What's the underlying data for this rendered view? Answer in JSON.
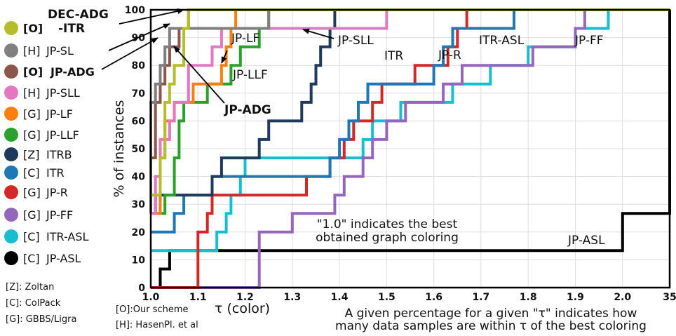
{
  "chart_data": {
    "type": "line",
    "ylabel": "% of instances",
    "xlabel": "τ (color)",
    "x_ticks": [
      "1.0",
      "1.1",
      "1.2",
      "1.3",
      "1.4",
      "1.5",
      "1.6",
      "1.7",
      "1.8",
      "1.9",
      "2.0",
      "35"
    ],
    "y_ticks": [
      "0",
      "10",
      "20",
      "30",
      "40",
      "50",
      "60",
      "70",
      "80",
      "90",
      "100"
    ],
    "ylim": [
      0,
      100
    ],
    "grid": true,
    "legend_position": "left",
    "legend": [
      {
        "prefix": "[O]",
        "name": "DEC-ADG",
        "name2": "-ITR",
        "color": "#b5bd2a",
        "bold": true
      },
      {
        "prefix": "[H]",
        "name": "JP-SL",
        "color": "#7f7f7f",
        "bold": false
      },
      {
        "prefix": "[O]",
        "name": "JP-ADG",
        "color": "#8c564b",
        "bold": true
      },
      {
        "prefix": "[H]",
        "name": "JP-SLL",
        "color": "#e377c2",
        "bold": false
      },
      {
        "prefix": "[G]",
        "name": "JP-LF",
        "color": "#ff7f0e",
        "bold": false
      },
      {
        "prefix": "[G]",
        "name": "JP-LLF",
        "color": "#2ca02c",
        "bold": false
      },
      {
        "prefix": "[Z]",
        "name": "ITRB",
        "color": "#1f3a5a",
        "bold": false
      },
      {
        "prefix": "[C]",
        "name": "ITR",
        "color": "#1f77b4",
        "bold": false
      },
      {
        "prefix": "[G]",
        "name": "JP-R",
        "color": "#d62728",
        "bold": false
      },
      {
        "prefix": "[G]",
        "name": "JP-FF",
        "color": "#9467bd",
        "bold": false
      },
      {
        "prefix": "[C]",
        "name": "ITR-ASL",
        "color": "#17becf",
        "bold": false
      },
      {
        "prefix": "[C]",
        "name": "JP-ASL",
        "color": "#000000",
        "bold": false
      }
    ],
    "source_notes": [
      "[Z]: Zoltan",
      "[C]: ColPack",
      "[G]: GBBS/Ligra"
    ],
    "scheme_notes": [
      "[O]:Our scheme",
      "[H]: HasenPl. et al"
    ],
    "annotations": {
      "best_note": [
        "\"1.0\" indicates the best",
        "obtained graph coloring"
      ],
      "percentage_note": [
        "A given percentage for a given \"τ\" indicates how",
        "many data samples are within τ of the best coloring"
      ],
      "dec_adg": [
        "DEC-ADG",
        "-ITR"
      ],
      "jp_lf": "JP-LF",
      "jp_sll": "JP-SLL",
      "jp_llf": "JP-LLF",
      "jp_adg": "JP-ADG",
      "itr": "ITR",
      "jp_r": "JP-R",
      "itr_asl": "ITR-ASL",
      "jp_ff": "JP-FF",
      "jp_asl": "JP-ASL"
    },
    "series": [
      {
        "name": "JP-ASL",
        "color": "#000000",
        "points": [
          [
            1.0,
            0
          ],
          [
            1.02,
            0
          ],
          [
            1.02,
            6.7
          ],
          [
            1.04,
            6.7
          ],
          [
            1.04,
            13.3
          ],
          [
            2.03,
            13.3
          ],
          [
            2.03,
            20
          ],
          [
            2.05,
            20
          ],
          [
            2.05,
            26.7
          ],
          [
            35,
            26.7
          ],
          [
            35,
            100
          ]
        ]
      },
      {
        "name": "ITR-ASL",
        "color": "#17becf",
        "points": [
          [
            1.0,
            13.3
          ],
          [
            1.14,
            13.3
          ],
          [
            1.14,
            20
          ],
          [
            1.16,
            20
          ],
          [
            1.16,
            26.7
          ],
          [
            1.17,
            26.7
          ],
          [
            1.17,
            33.3
          ],
          [
            1.19,
            33.3
          ],
          [
            1.19,
            40
          ],
          [
            1.2,
            40
          ],
          [
            1.2,
            46.7
          ],
          [
            1.45,
            46.7
          ],
          [
            1.45,
            53.3
          ],
          [
            1.47,
            53.3
          ],
          [
            1.47,
            60
          ],
          [
            1.53,
            60
          ],
          [
            1.53,
            66.7
          ],
          [
            1.64,
            66.7
          ],
          [
            1.64,
            73.3
          ],
          [
            1.72,
            73.3
          ],
          [
            1.72,
            80
          ],
          [
            1.8,
            80
          ],
          [
            1.8,
            86.7
          ],
          [
            1.9,
            86.7
          ],
          [
            1.9,
            93.3
          ],
          [
            1.97,
            93.3
          ],
          [
            1.97,
            100
          ],
          [
            35,
            100
          ]
        ]
      },
      {
        "name": "JP-FF",
        "color": "#9467bd",
        "points": [
          [
            1.0,
            0
          ],
          [
            1.23,
            0
          ],
          [
            1.23,
            20
          ],
          [
            1.3,
            20
          ],
          [
            1.3,
            26.7
          ],
          [
            1.39,
            26.7
          ],
          [
            1.39,
            33.3
          ],
          [
            1.41,
            33.3
          ],
          [
            1.41,
            40
          ],
          [
            1.45,
            40
          ],
          [
            1.45,
            46.7
          ],
          [
            1.47,
            46.7
          ],
          [
            1.47,
            53.3
          ],
          [
            1.5,
            53.3
          ],
          [
            1.5,
            60
          ],
          [
            1.54,
            60
          ],
          [
            1.54,
            66.7
          ],
          [
            1.62,
            66.7
          ],
          [
            1.62,
            73.3
          ],
          [
            1.66,
            73.3
          ],
          [
            1.66,
            80
          ],
          [
            1.81,
            80
          ],
          [
            1.81,
            86.7
          ],
          [
            1.9,
            86.7
          ],
          [
            1.9,
            93.3
          ],
          [
            1.92,
            93.3
          ],
          [
            1.92,
            100
          ],
          [
            35,
            100
          ]
        ]
      },
      {
        "name": "JP-R",
        "color": "#d62728",
        "points": [
          [
            1.0,
            0
          ],
          [
            1.1,
            0
          ],
          [
            1.1,
            20
          ],
          [
            1.12,
            20
          ],
          [
            1.12,
            26.7
          ],
          [
            1.13,
            26.7
          ],
          [
            1.13,
            33.3
          ],
          [
            1.33,
            33.3
          ],
          [
            1.33,
            40
          ],
          [
            1.38,
            40
          ],
          [
            1.38,
            46.7
          ],
          [
            1.41,
            46.7
          ],
          [
            1.41,
            53.3
          ],
          [
            1.43,
            53.3
          ],
          [
            1.43,
            60
          ],
          [
            1.47,
            60
          ],
          [
            1.47,
            66.7
          ],
          [
            1.49,
            66.7
          ],
          [
            1.49,
            73.3
          ],
          [
            1.56,
            73.3
          ],
          [
            1.56,
            80
          ],
          [
            1.63,
            80
          ],
          [
            1.63,
            86.7
          ],
          [
            1.65,
            86.7
          ],
          [
            1.65,
            93.3
          ],
          [
            1.67,
            93.3
          ],
          [
            1.67,
            100
          ],
          [
            35,
            100
          ]
        ]
      },
      {
        "name": "ITR",
        "color": "#1f77b4",
        "points": [
          [
            1.0,
            20
          ],
          [
            1.05,
            20
          ],
          [
            1.05,
            26.7
          ],
          [
            1.07,
            26.7
          ],
          [
            1.07,
            33.3
          ],
          [
            1.13,
            33.3
          ],
          [
            1.13,
            40
          ],
          [
            1.38,
            40
          ],
          [
            1.38,
            46.7
          ],
          [
            1.4,
            46.7
          ],
          [
            1.4,
            53.3
          ],
          [
            1.42,
            53.3
          ],
          [
            1.42,
            60
          ],
          [
            1.44,
            60
          ],
          [
            1.44,
            66.7
          ],
          [
            1.46,
            66.7
          ],
          [
            1.46,
            73.3
          ],
          [
            1.6,
            73.3
          ],
          [
            1.6,
            80
          ],
          [
            1.62,
            80
          ],
          [
            1.62,
            86.7
          ],
          [
            1.64,
            86.7
          ],
          [
            1.64,
            93.3
          ],
          [
            1.77,
            93.3
          ],
          [
            1.77,
            100
          ],
          [
            35,
            100
          ]
        ]
      },
      {
        "name": "ITRB",
        "color": "#1f3a5a",
        "points": [
          [
            1.0,
            26.7
          ],
          [
            1.01,
            26.7
          ],
          [
            1.01,
            33.3
          ],
          [
            1.13,
            33.3
          ],
          [
            1.13,
            40
          ],
          [
            1.15,
            40
          ],
          [
            1.15,
            46.7
          ],
          [
            1.23,
            46.7
          ],
          [
            1.23,
            53.3
          ],
          [
            1.25,
            53.3
          ],
          [
            1.25,
            60
          ],
          [
            1.32,
            60
          ],
          [
            1.32,
            66.7
          ],
          [
            1.34,
            66.7
          ],
          [
            1.34,
            73.3
          ],
          [
            1.35,
            73.3
          ],
          [
            1.35,
            80
          ],
          [
            1.36,
            80
          ],
          [
            1.36,
            86.7
          ],
          [
            1.38,
            86.7
          ],
          [
            1.38,
            93.3
          ],
          [
            1.39,
            93.3
          ],
          [
            1.39,
            100
          ],
          [
            35,
            100
          ]
        ]
      },
      {
        "name": "JP-LLF",
        "color": "#2ca02c",
        "points": [
          [
            1.0,
            26.7
          ],
          [
            1.03,
            26.7
          ],
          [
            1.03,
            33.3
          ],
          [
            1.05,
            33.3
          ],
          [
            1.05,
            46.7
          ],
          [
            1.06,
            46.7
          ],
          [
            1.06,
            60
          ],
          [
            1.07,
            60
          ],
          [
            1.07,
            66.7
          ],
          [
            1.12,
            66.7
          ],
          [
            1.12,
            73.3
          ],
          [
            1.17,
            73.3
          ],
          [
            1.17,
            80
          ],
          [
            1.19,
            80
          ],
          [
            1.19,
            86.7
          ],
          [
            1.23,
            86.7
          ],
          [
            1.23,
            93.3
          ],
          [
            1.25,
            93.3
          ],
          [
            1.25,
            100
          ],
          [
            35,
            100
          ]
        ]
      },
      {
        "name": "JP-LF",
        "color": "#ff7f0e",
        "points": [
          [
            1.0,
            26.7
          ],
          [
            1.02,
            26.7
          ],
          [
            1.02,
            46.7
          ],
          [
            1.03,
            46.7
          ],
          [
            1.03,
            60
          ],
          [
            1.05,
            60
          ],
          [
            1.05,
            66.7
          ],
          [
            1.09,
            66.7
          ],
          [
            1.09,
            73.3
          ],
          [
            1.15,
            73.3
          ],
          [
            1.15,
            80
          ],
          [
            1.16,
            80
          ],
          [
            1.16,
            86.7
          ],
          [
            1.17,
            86.7
          ],
          [
            1.17,
            93.3
          ],
          [
            1.18,
            93.3
          ],
          [
            1.18,
            100
          ],
          [
            35,
            100
          ]
        ]
      },
      {
        "name": "JP-SLL",
        "color": "#e377c2",
        "points": [
          [
            1.0,
            26.7
          ],
          [
            1.01,
            26.7
          ],
          [
            1.01,
            40
          ],
          [
            1.02,
            40
          ],
          [
            1.02,
            53.3
          ],
          [
            1.04,
            53.3
          ],
          [
            1.04,
            60
          ],
          [
            1.05,
            60
          ],
          [
            1.05,
            66.7
          ],
          [
            1.08,
            66.7
          ],
          [
            1.08,
            80
          ],
          [
            1.13,
            80
          ],
          [
            1.13,
            86.7
          ],
          [
            1.15,
            86.7
          ],
          [
            1.15,
            93.3
          ],
          [
            1.5,
            93.3
          ],
          [
            1.5,
            100
          ],
          [
            35,
            100
          ]
        ]
      },
      {
        "name": "JP-ADG",
        "color": "#8c564b",
        "points": [
          [
            1.0,
            26.7
          ],
          [
            1.0,
            46.7
          ],
          [
            1.01,
            46.7
          ],
          [
            1.01,
            66.7
          ],
          [
            1.02,
            66.7
          ],
          [
            1.02,
            73.3
          ],
          [
            1.03,
            73.3
          ],
          [
            1.03,
            80
          ],
          [
            1.04,
            80
          ],
          [
            1.04,
            86.7
          ],
          [
            1.06,
            86.7
          ],
          [
            1.06,
            93.3
          ],
          [
            1.08,
            93.3
          ],
          [
            1.08,
            100
          ],
          [
            35,
            100
          ]
        ]
      },
      {
        "name": "JP-SL",
        "color": "#7f7f7f",
        "points": [
          [
            1.0,
            26.7
          ],
          [
            1.0,
            66.7
          ],
          [
            1.01,
            66.7
          ],
          [
            1.01,
            73.3
          ],
          [
            1.02,
            73.3
          ],
          [
            1.02,
            80
          ],
          [
            1.03,
            80
          ],
          [
            1.03,
            86.7
          ],
          [
            1.04,
            86.7
          ],
          [
            1.04,
            93.3
          ],
          [
            1.25,
            93.3
          ],
          [
            1.25,
            100
          ],
          [
            35,
            100
          ]
        ]
      },
      {
        "name": "DEC-ADG-ITR",
        "color": "#b5bd2a",
        "points": [
          [
            1.0,
            33.3
          ],
          [
            1.02,
            33.3
          ],
          [
            1.02,
            46.7
          ],
          [
            1.03,
            46.7
          ],
          [
            1.03,
            66.7
          ],
          [
            1.04,
            66.7
          ],
          [
            1.04,
            73.3
          ],
          [
            1.05,
            73.3
          ],
          [
            1.05,
            80
          ],
          [
            1.07,
            80
          ],
          [
            1.07,
            93.3
          ],
          [
            1.08,
            93.3
          ],
          [
            1.08,
            100
          ],
          [
            35,
            100
          ]
        ]
      }
    ]
  }
}
